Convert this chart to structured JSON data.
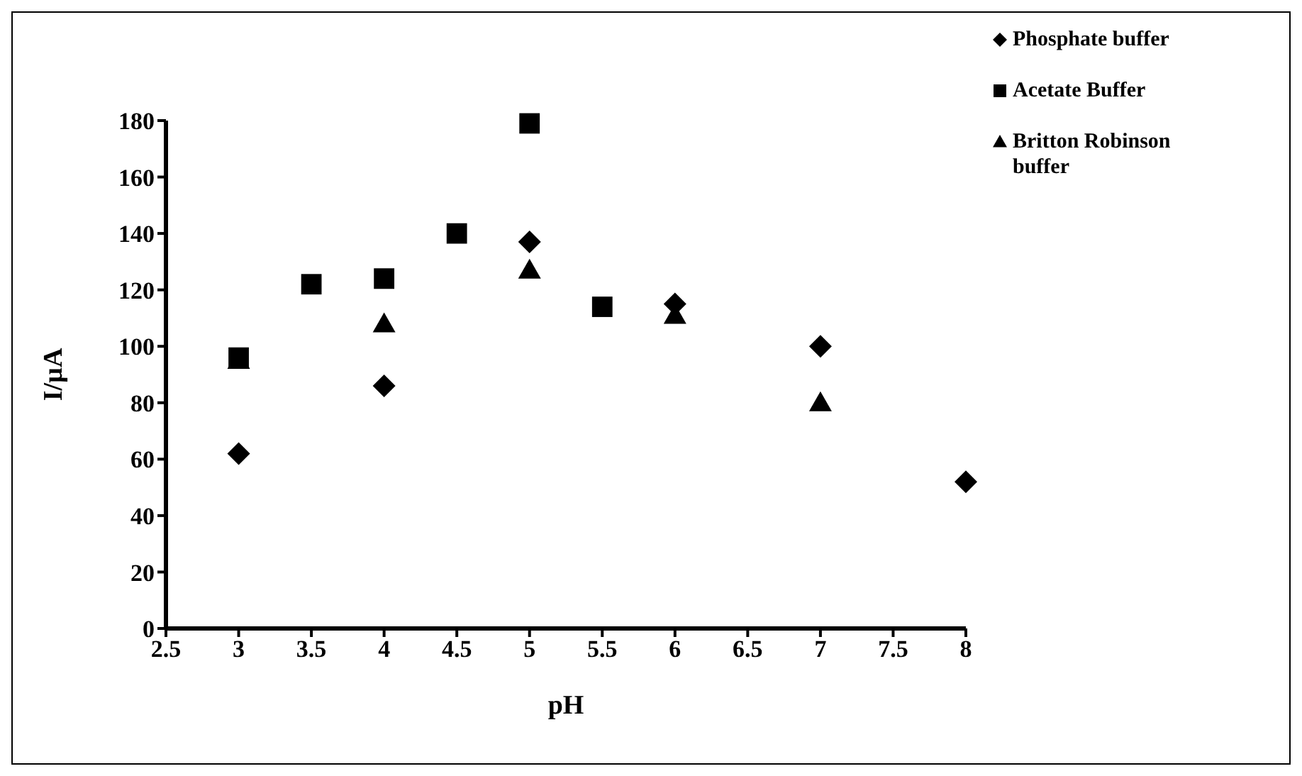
{
  "chart_data": {
    "type": "scatter",
    "xlabel": "pH",
    "ylabel": "I/µA",
    "xlim": [
      2.5,
      8
    ],
    "xticks": [
      2.5,
      3,
      3.5,
      4,
      4.5,
      5,
      5.5,
      6,
      6.5,
      7,
      7.5,
      8
    ],
    "ylim": [
      0,
      180
    ],
    "yticks": [
      0,
      20,
      40,
      60,
      80,
      100,
      120,
      140,
      160,
      180
    ],
    "grid": false,
    "legend": "top right",
    "series": [
      {
        "name": "Phosphate buffer",
        "color": "#000000",
        "marker": "diamond",
        "x": [
          3,
          4,
          5,
          6,
          7,
          8
        ],
        "values": [
          62,
          86,
          137,
          115,
          100,
          52
        ]
      },
      {
        "name": "Acetate Buffer",
        "color": "#000000",
        "marker": "square",
        "x": [
          3,
          3.5,
          4,
          4.5,
          5,
          5.5
        ],
        "values": [
          96,
          122,
          124,
          140,
          179,
          114
        ]
      },
      {
        "name": "Britton Robinson buffer",
        "color": "#000000",
        "marker": "triangle",
        "x": [
          3,
          4,
          5,
          6,
          7
        ],
        "values": [
          95,
          108,
          127,
          111,
          80
        ]
      }
    ]
  }
}
